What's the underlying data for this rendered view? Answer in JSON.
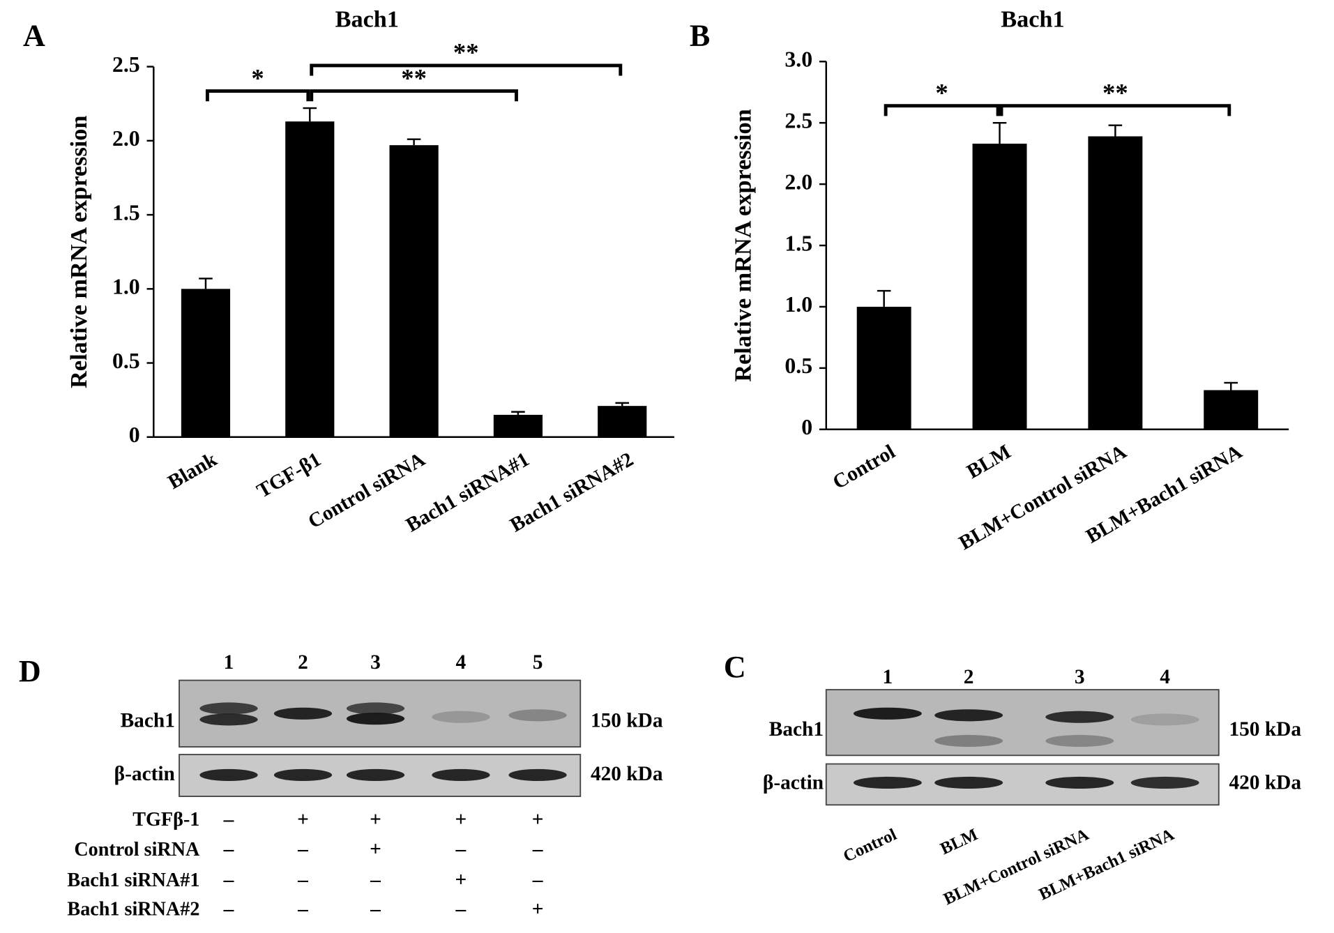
{
  "chart_data": [
    {
      "type": "bar",
      "panel": "A",
      "title": "Bach1",
      "ylabel": "Relative mRNA expression",
      "categories": [
        "Blank",
        "TGF-β1",
        "Control siRNA",
        "Bach1 siRNA#1",
        "Bach1 siRNA#2"
      ],
      "values": [
        1.0,
        2.13,
        1.97,
        0.15,
        0.21
      ],
      "errors": [
        0.07,
        0.09,
        0.04,
        0.02,
        0.02
      ],
      "color": "#000000",
      "ylim": [
        0,
        2.5
      ],
      "yticks": [
        0,
        0.5,
        {
          "value": 1,
          "label": "1.0"
        },
        1.5,
        {
          "value": 2,
          "label": "2.0"
        },
        2.5
      ],
      "annotations": [
        {
          "between": [
            0,
            1
          ],
          "label": "*"
        },
        {
          "between": [
            1,
            3
          ],
          "label": "**"
        },
        {
          "between": [
            1,
            4
          ],
          "label": "**"
        }
      ]
    },
    {
      "type": "bar",
      "panel": "B",
      "title": "Bach1",
      "ylabel": "Relative mRNA expression",
      "categories": [
        "Control",
        "BLM",
        "BLM+Control siRNA",
        "BLM+Bach1 siRNA"
      ],
      "values": [
        1.0,
        2.33,
        2.39,
        0.32
      ],
      "errors": [
        0.13,
        0.17,
        0.09,
        0.06
      ],
      "color": "#000000",
      "ylim": [
        0,
        3
      ],
      "yticks": [
        0,
        0.5,
        {
          "value": 1,
          "label": "1.0"
        },
        1.5,
        {
          "value": 2,
          "label": "2.0"
        },
        2.5,
        {
          "value": 3,
          "label": "3.0"
        }
      ],
      "annotations": [
        {
          "between": [
            0,
            1
          ],
          "label": "*"
        },
        {
          "between": [
            1,
            3
          ],
          "label": "**"
        }
      ]
    }
  ],
  "blots": [
    {
      "panel": "D",
      "lanes": [
        "1",
        "2",
        "3",
        "4",
        "5"
      ],
      "rows": [
        {
          "label": "Bach1",
          "size": "150 kDa"
        },
        {
          "label": "β-actin",
          "size": "420 kDa"
        }
      ],
      "conditions": [
        {
          "label": "TGFβ-1",
          "marks": [
            "–",
            "+",
            "+",
            "+",
            "+"
          ]
        },
        {
          "label": "Control siRNA",
          "marks": [
            "–",
            "–",
            "+",
            "–",
            "–"
          ]
        },
        {
          "label": "Bach1 siRNA#1",
          "marks": [
            "–",
            "–",
            "–",
            "+",
            "–"
          ]
        },
        {
          "label": "Bach1 siRNA#2",
          "marks": [
            "–",
            "–",
            "–",
            "–",
            "+"
          ]
        }
      ]
    },
    {
      "panel": "C",
      "lanes": [
        "1",
        "2",
        "3",
        "4"
      ],
      "rows": [
        {
          "label": "Bach1",
          "size": "150 kDa"
        },
        {
          "label": "β-actin",
          "size": "420 kDa"
        }
      ],
      "lane_labels": [
        "Control",
        "BLM",
        "BLM+Control siRNA",
        "BLM+Bach1 siRNA"
      ]
    }
  ]
}
